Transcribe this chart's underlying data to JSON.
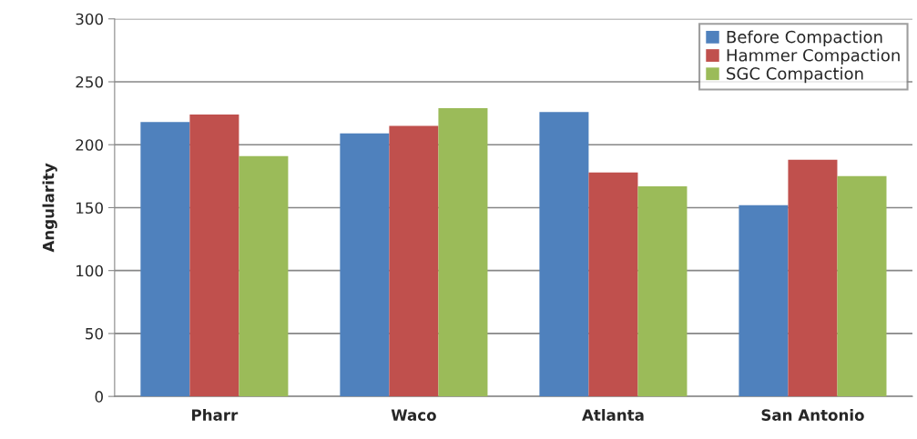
{
  "chart_data": {
    "type": "bar",
    "ylabel": "Angularity",
    "categories": [
      "Pharr",
      "Waco",
      "Atlanta",
      "San Antonio"
    ],
    "series": [
      {
        "name": "Before Compaction",
        "color": "#4f81bd",
        "values": [
          218,
          209,
          226,
          152
        ]
      },
      {
        "name": "Hammer Compaction",
        "color": "#c0504d",
        "values": [
          224,
          215,
          178,
          188
        ]
      },
      {
        "name": "SGC Compaction",
        "color": "#9bbb59",
        "values": [
          191,
          229,
          167,
          175
        ]
      }
    ],
    "ylim": [
      0,
      300
    ],
    "yticks": [
      0,
      50,
      100,
      150,
      200,
      250,
      300
    ],
    "grid": "y",
    "legend": "top right"
  }
}
